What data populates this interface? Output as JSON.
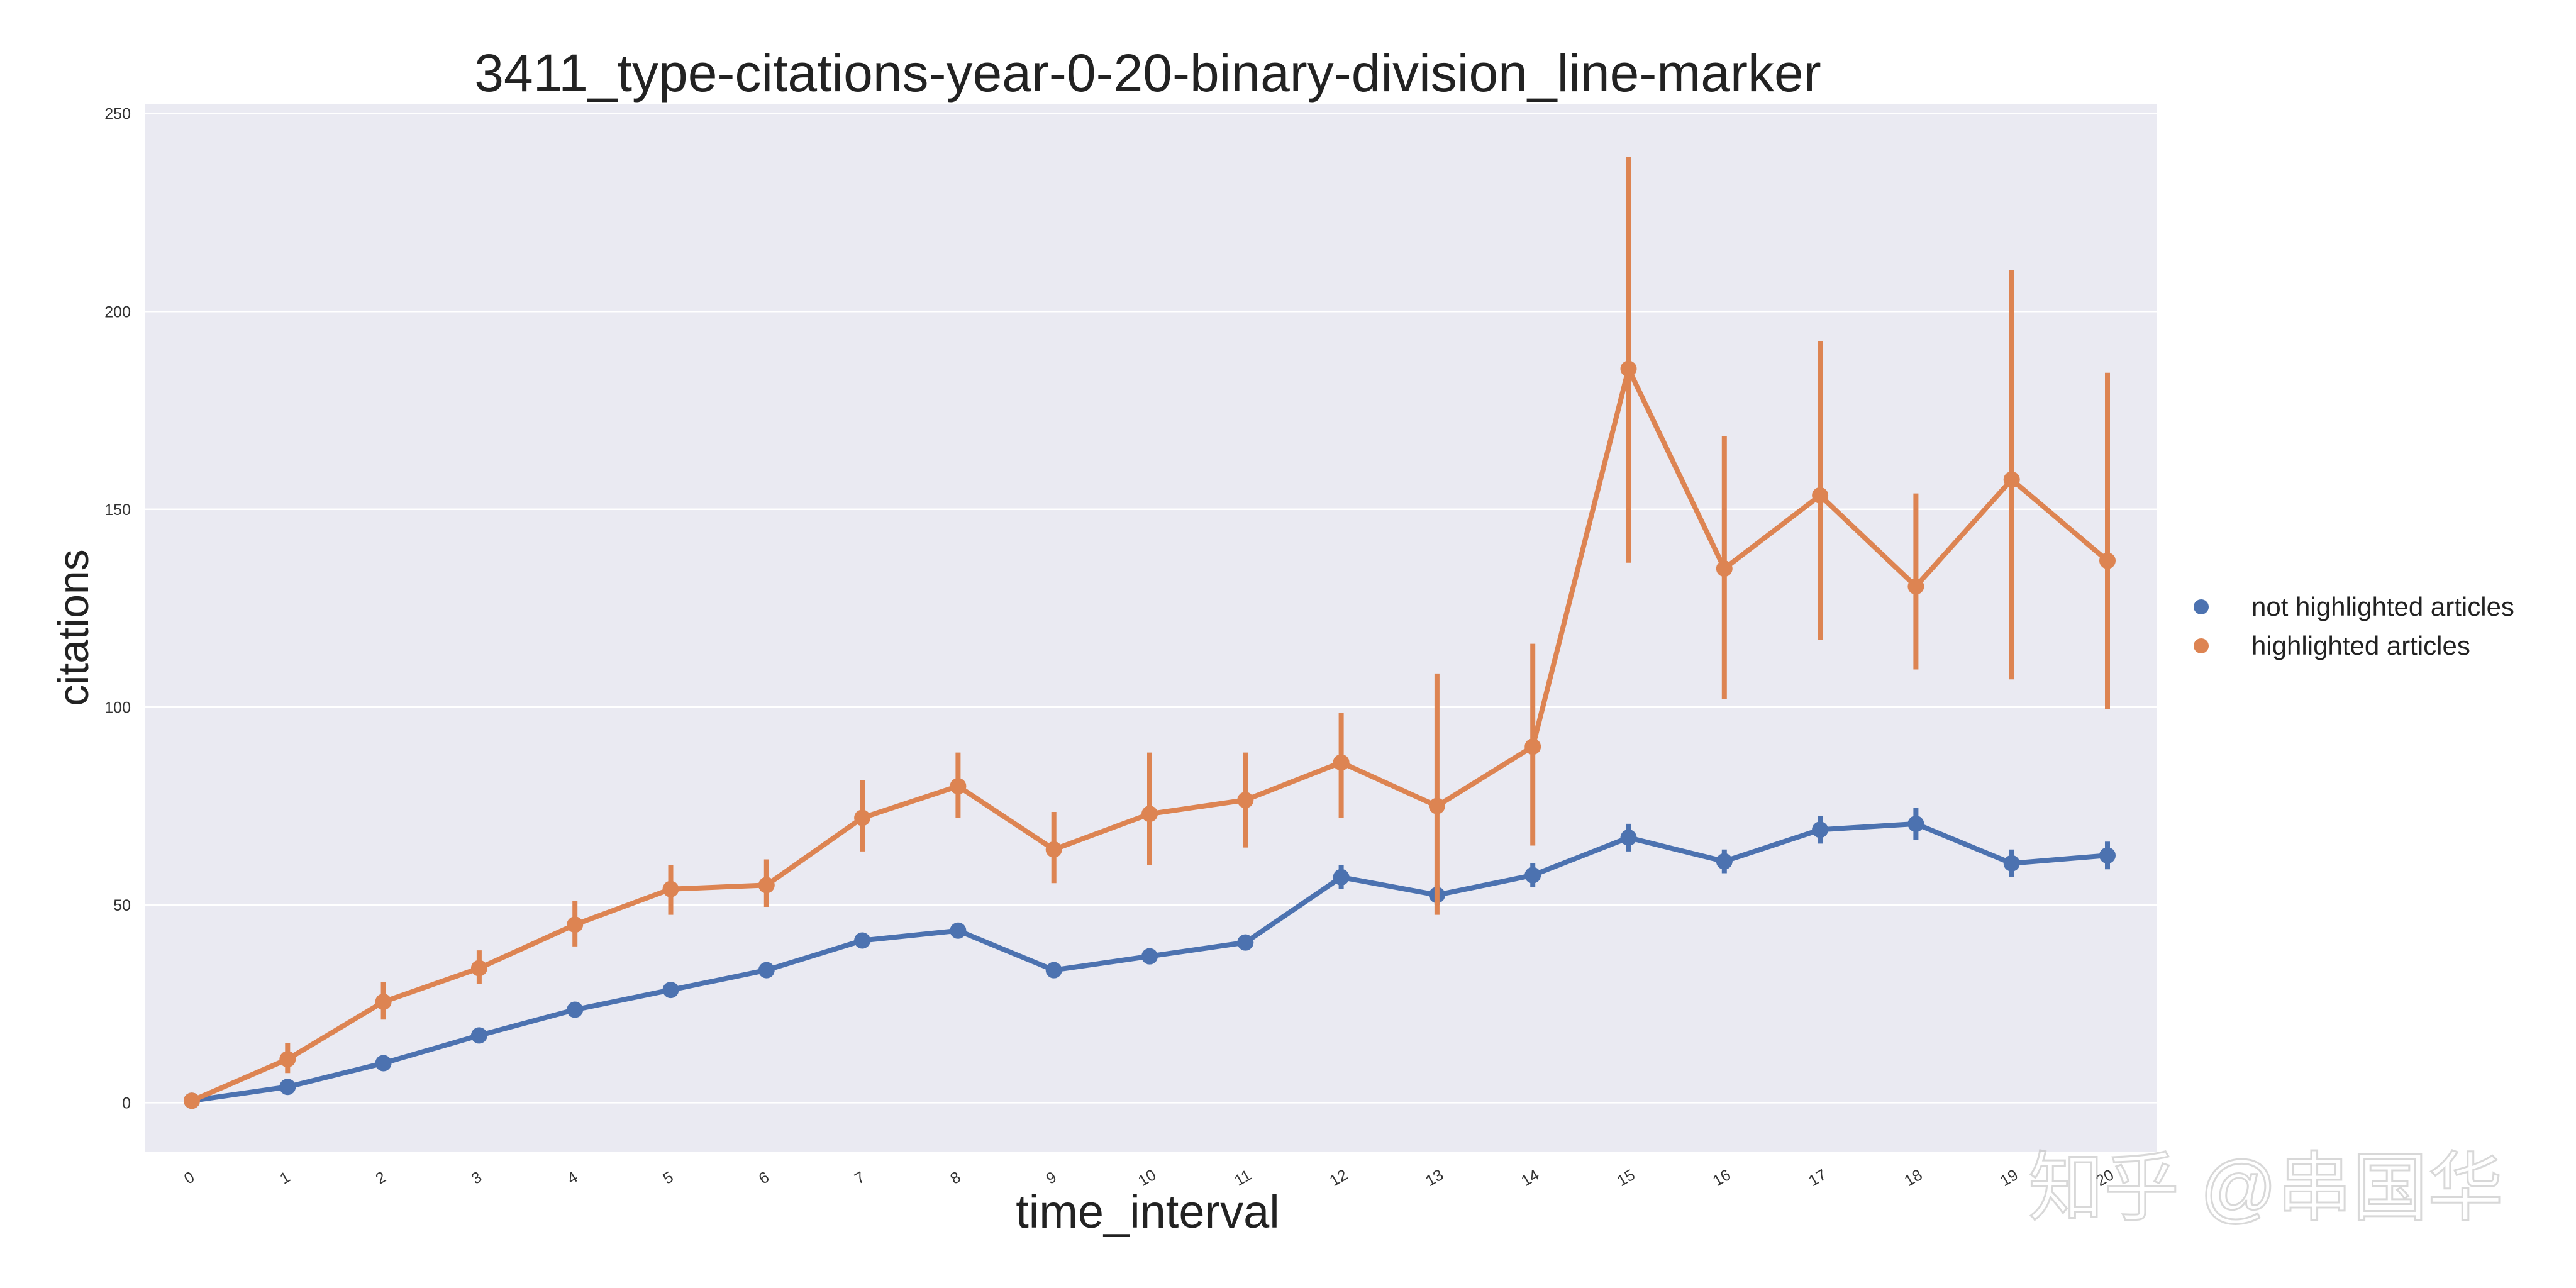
{
  "chart_data": {
    "type": "line",
    "title": "3411_type-citations-year-0-20-binary-division_line-marker",
    "xlabel": "time_interval",
    "ylabel": "citations",
    "categories": [
      "0",
      "1",
      "2",
      "3",
      "4",
      "5",
      "6",
      "7",
      "8",
      "9",
      "10",
      "11",
      "12",
      "13",
      "14",
      "15",
      "16",
      "17",
      "18",
      "19",
      "20"
    ],
    "ylim": [
      -12.5,
      252.5
    ],
    "yticks": [
      0,
      50,
      100,
      150,
      200,
      250
    ],
    "grid": true,
    "legend_position": "right",
    "series": [
      {
        "name": "not highlighted articles",
        "color": "#4c72b0",
        "values": [
          0.5,
          4,
          10,
          17,
          23.5,
          28.5,
          33.5,
          41,
          43.5,
          33.5,
          37,
          40.5,
          57,
          52.5,
          57.5,
          67,
          61,
          69,
          70.5,
          60.5,
          62.5
        ],
        "err_low": [
          0.5,
          3,
          8.5,
          15.5,
          22,
          27,
          32,
          39.5,
          41.5,
          31.5,
          35,
          38.5,
          54,
          50,
          54.5,
          63.5,
          58,
          65.5,
          66.5,
          57,
          59
        ],
        "err_high": [
          0.5,
          5,
          11.5,
          18.5,
          25,
          30,
          35,
          42.5,
          45.5,
          35.5,
          39,
          42.5,
          60,
          55,
          60.5,
          70.5,
          64,
          72.5,
          74.5,
          64,
          66
        ]
      },
      {
        "name": "highlighted articles",
        "color": "#dd8452",
        "values": [
          0.5,
          11,
          25.5,
          34,
          45,
          54,
          55,
          72,
          80,
          64,
          73,
          76.5,
          86,
          75,
          90,
          185.5,
          135,
          153.5,
          130.5,
          157.5,
          137
        ],
        "err_low": [
          0.5,
          7.5,
          21,
          30,
          39.5,
          47.5,
          49.5,
          63.5,
          72,
          55.5,
          60,
          64.5,
          72,
          47.5,
          65,
          136.5,
          102,
          117,
          109.5,
          107,
          99.5
        ],
        "err_high": [
          0.5,
          15,
          30.5,
          38.5,
          51,
          60,
          61.5,
          81.5,
          88.5,
          73.5,
          88.5,
          88.5,
          98.5,
          108.5,
          116,
          239,
          168.5,
          192.5,
          154,
          210.5,
          184.5
        ]
      }
    ]
  },
  "watermark": {
    "text": "知乎 @串国华"
  }
}
